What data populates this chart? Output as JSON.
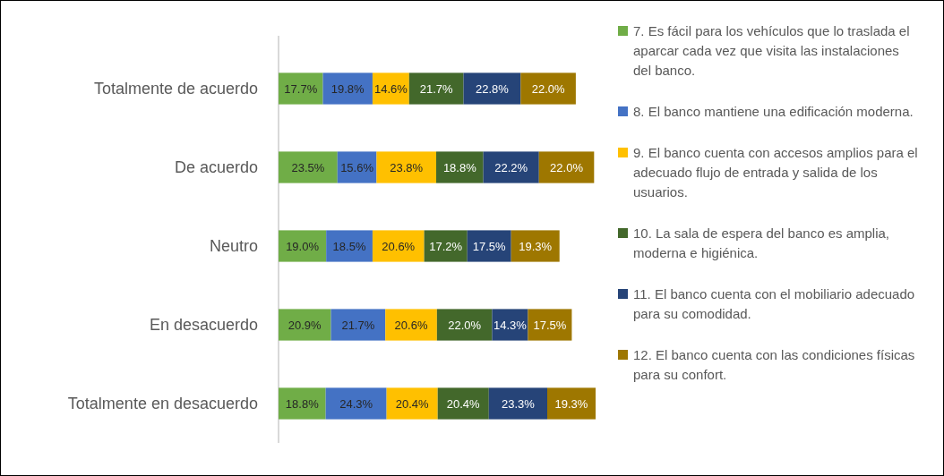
{
  "chart_data": {
    "type": "bar",
    "orientation": "horizontal",
    "stacked": true,
    "categories": [
      "Totalmente de acuerdo",
      "De acuerdo",
      "Neutro",
      "En desacuerdo",
      "Totalmente en desacuerdo"
    ],
    "series": [
      {
        "name": "7. Es fácil para los vehículos que lo traslada el aparcar cada vez que visita las instalaciones del banco.",
        "color": "#70ad47",
        "values": [
          17.7,
          23.5,
          19.0,
          20.9,
          18.8
        ],
        "value_labels": [
          "17.7%",
          "23.5%",
          "19.0%",
          "20.9%",
          "18.8%"
        ]
      },
      {
        "name": "8. El banco mantiene una edificación moderna.",
        "color": "#4472c4",
        "values": [
          19.8,
          15.6,
          18.5,
          21.7,
          24.3
        ],
        "value_labels": [
          "19.8%",
          "15.6%",
          "18.5%",
          "21.7%",
          "24.3%"
        ]
      },
      {
        "name": "9. El banco cuenta con accesos amplios para el adecuado flujo de entrada y salida de los usuarios.",
        "color": "#ffc000",
        "values": [
          14.6,
          23.8,
          20.6,
          20.6,
          20.4
        ],
        "value_labels": [
          "14.6%",
          "23.8%",
          "20.6%",
          "20.6%",
          "20.4%"
        ]
      },
      {
        "name": "10. La sala de espera del banco es amplia, moderna e higiénica.",
        "color": "#43682b",
        "values": [
          21.7,
          18.8,
          17.2,
          22.0,
          20.4
        ],
        "value_labels": [
          "21.7%",
          "18.8%",
          "17.2%",
          "22.0%",
          "20.4%"
        ]
      },
      {
        "name": "11. El banco cuenta con el mobiliario adecuado para su comodidad.",
        "color": "#264478",
        "values": [
          22.8,
          22.2,
          17.5,
          14.3,
          23.3
        ],
        "value_labels": [
          "22.8%",
          "22.2%",
          "17.5%",
          "14.3%",
          "23.3%"
        ]
      },
      {
        "name": "12. El banco cuenta con las condiciones físicas para su confort.",
        "color": "#9e7700",
        "values": [
          22.0,
          22.0,
          19.3,
          17.5,
          19.3
        ],
        "value_labels": [
          "22.0%",
          "22.0%",
          "19.3%",
          "17.5%",
          "19.3%"
        ]
      }
    ],
    "tick_labels": "y",
    "legend": "right"
  }
}
